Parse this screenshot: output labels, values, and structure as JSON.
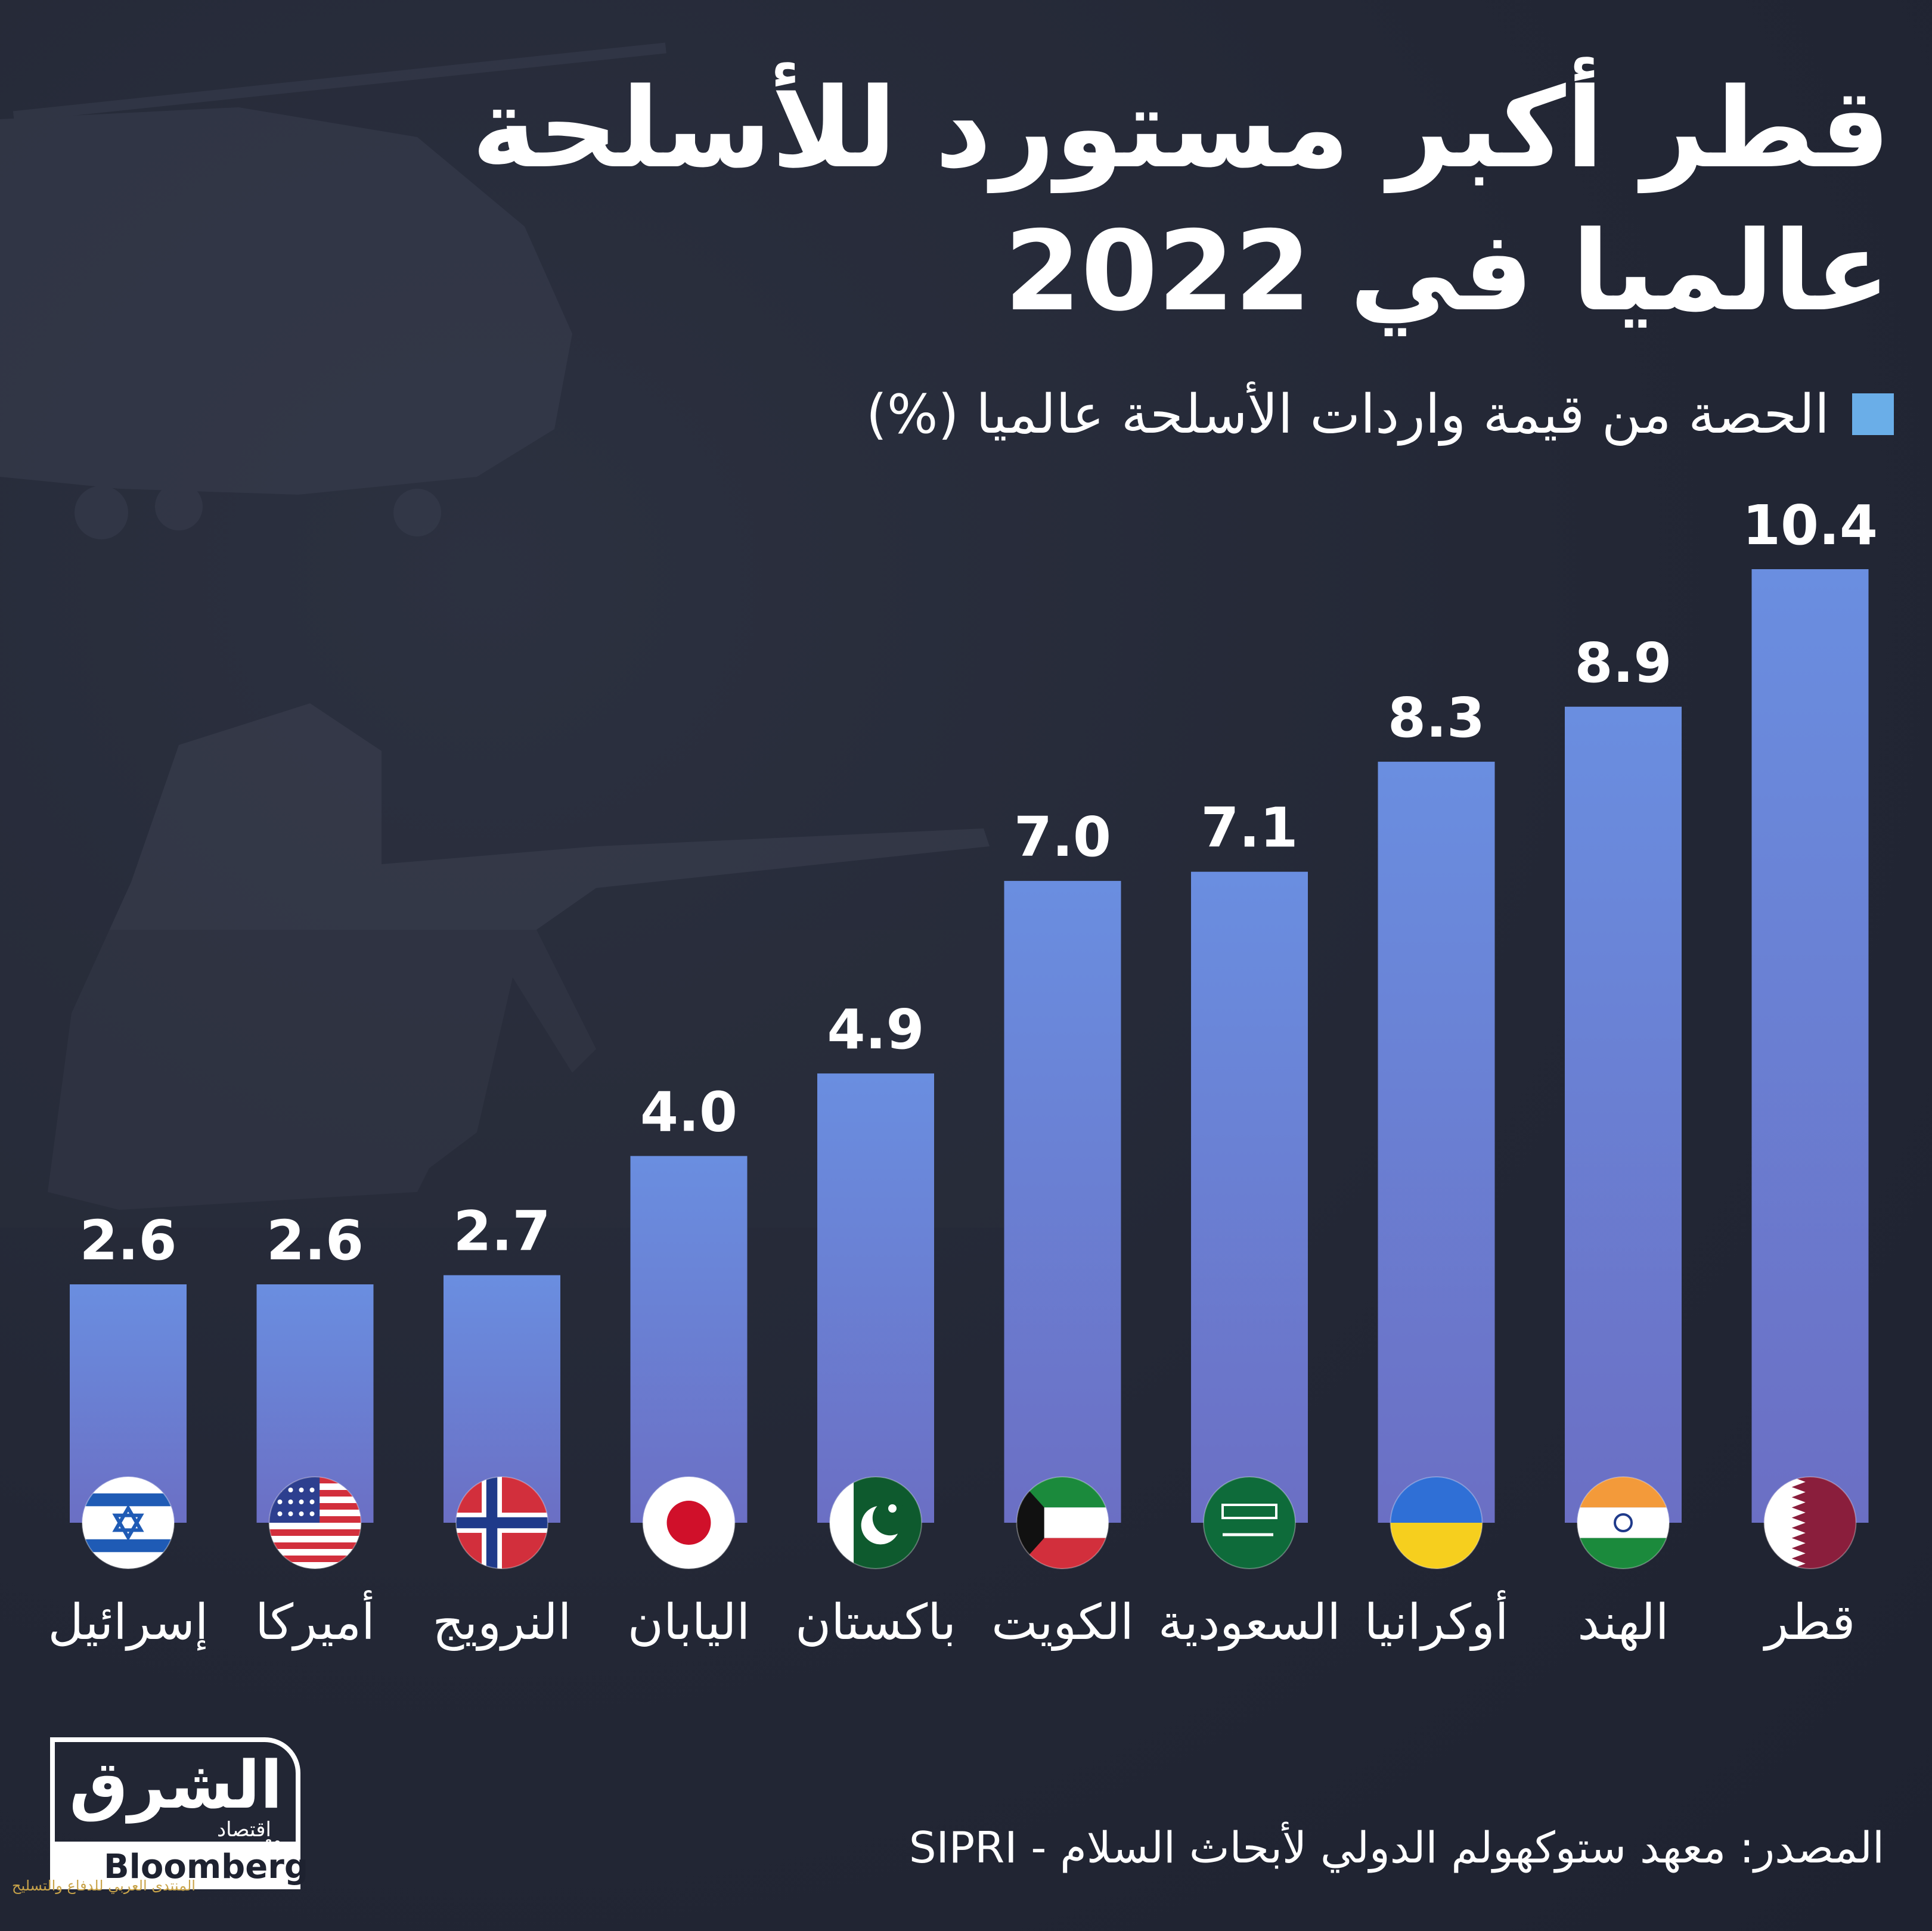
{
  "header": {
    "title_line1": "قطر أكبر مستورد للأسلحة",
    "title_line2": "عالميا في 2022"
  },
  "legend": {
    "label": "الحصة من قيمة واردات الأسلحة عالميا (%)",
    "color": "#6aaee8"
  },
  "chart_data": {
    "type": "bar",
    "categories": [
      "إسرائيل",
      "أميركا",
      "النرويج",
      "اليابان",
      "باكستان",
      "الكويت",
      "السعودية",
      "أوكرانيا",
      "الهند",
      "قطر"
    ],
    "values": [
      2.6,
      2.6,
      2.7,
      4.0,
      4.9,
      7.0,
      7.1,
      8.3,
      8.9,
      10.4
    ],
    "value_labels": [
      "2.6",
      "2.6",
      "2.7",
      "4.0",
      "4.9",
      "7.0",
      "7.1",
      "8.3",
      "8.9",
      "10.4"
    ],
    "flags": [
      "israel-flag-icon",
      "usa-flag-icon",
      "norway-flag-icon",
      "japan-flag-icon",
      "pakistan-flag-icon",
      "kuwait-flag-icon",
      "saudi-flag-icon",
      "ukraine-flag-icon",
      "india-flag-icon",
      "qatar-flag-icon"
    ],
    "bar_color_top": "#6a8ee0",
    "bar_color_bottom": "#6b6fc4",
    "grid": false,
    "legend_position": "top-right"
  },
  "footer": {
    "source": "المصدر: معهد ستوكهولم الدولي لأبحاث السلام - SIPRI"
  },
  "logo": {
    "brand": "الشرق",
    "sub": "اقتصاد",
    "with": "مع",
    "partner": "Bloomberg"
  },
  "watermark": "المنتدى العربي للدفاع والتسليح"
}
